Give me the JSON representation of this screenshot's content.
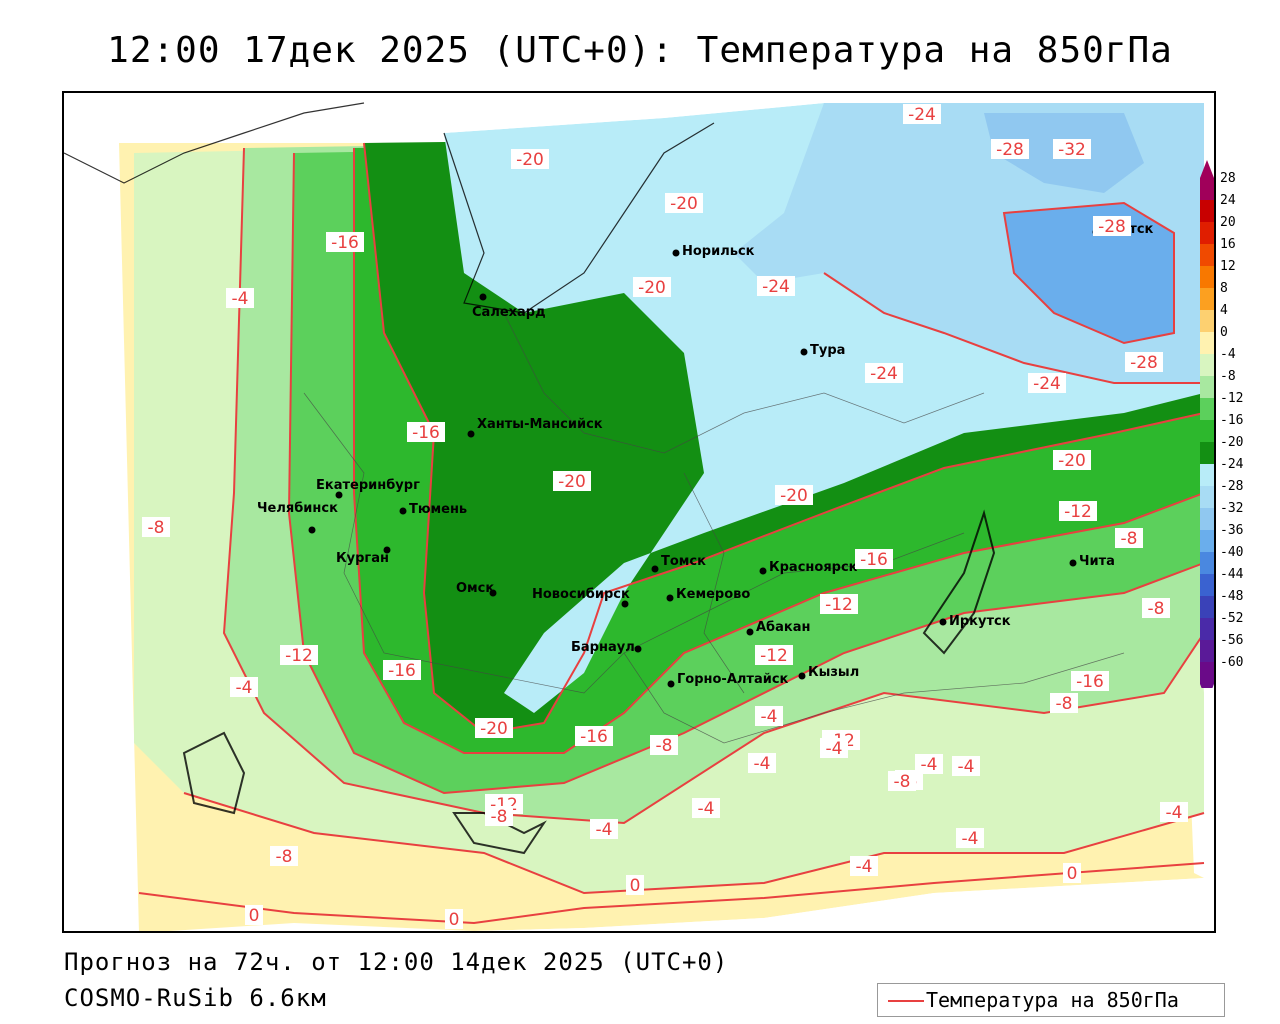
{
  "title": "12:00 17дек 2025 (UTC+0): Температура на 850гПа",
  "footer": {
    "forecast": "Прогноз на 72ч. от 12:00 14дек 2025 (UTC+0)",
    "model": "COSMO-RuSib 6.6км"
  },
  "legend": {
    "label": "Температура на 850гПа",
    "line_color": "#e84040"
  },
  "colorbar": {
    "ticks": [
      "28",
      "24",
      "20",
      "16",
      "12",
      "8",
      "4",
      "0",
      "-4",
      "-8",
      "-12",
      "-16",
      "-20",
      "-24",
      "-28",
      "-32",
      "-36",
      "-40",
      "-44",
      "-48",
      "-52",
      "-56",
      "-60"
    ],
    "colors": [
      "#a0005a",
      "#c80000",
      "#e01e00",
      "#f04a00",
      "#f87800",
      "#fca020",
      "#fdd070",
      "#fff2b0",
      "#d8f5c0",
      "#a8e8a0",
      "#5cd05c",
      "#2db82d",
      "#138f13",
      "#b8ecf8",
      "#a8dcf4",
      "#90c8f0",
      "#6aaeec",
      "#4a88e0",
      "#3a62d0",
      "#3a42b8",
      "#4a2aa8",
      "#5a1a98",
      "#6a0a88"
    ]
  },
  "cities": [
    {
      "name": "Салехард"
    },
    {
      "name": "Норильск"
    },
    {
      "name": "Тура"
    },
    {
      "name": "Якутск"
    },
    {
      "name": "Ханты-Мансийск"
    },
    {
      "name": "Екатеринбург"
    },
    {
      "name": "Тюмень"
    },
    {
      "name": "Челябинск"
    },
    {
      "name": "Курган"
    },
    {
      "name": "Омск"
    },
    {
      "name": "Новосибирск"
    },
    {
      "name": "Томск"
    },
    {
      "name": "Кемерово"
    },
    {
      "name": "Красноярск"
    },
    {
      "name": "Абакан"
    },
    {
      "name": "Барнаул"
    },
    {
      "name": "Горно-Алтайск"
    },
    {
      "name": "Кызыл"
    },
    {
      "name": "Иркутск"
    },
    {
      "name": "Чита"
    }
  ],
  "isotherm_labels": [
    "-24",
    "-28",
    "-32",
    "-28",
    "-20",
    "-20",
    "-16",
    "-4",
    "-20",
    "-24",
    "-24",
    "-28",
    "-24",
    "-16",
    "-20",
    "-20",
    "-20",
    "-16",
    "-12",
    "-8",
    "-16",
    "-12",
    "-8",
    "-12",
    "-8",
    "-4",
    "-12",
    "-16",
    "-12",
    "-20",
    "-16",
    "-8",
    "-8",
    "-4",
    "-12",
    "-8",
    "-4",
    "-4",
    "-4",
    "-8",
    "-8",
    "-4",
    "-4",
    "-4",
    "-4",
    "-4",
    "-4",
    "0",
    "0",
    "0",
    "0",
    "-8",
    "-4"
  ]
}
